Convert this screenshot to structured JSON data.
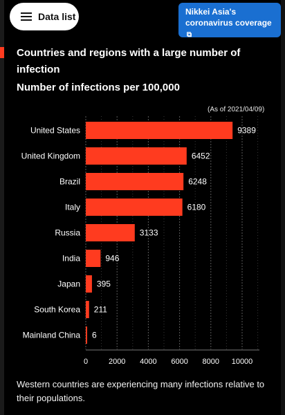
{
  "header": {
    "data_list_label": "Data list",
    "nikkei_line1": "Nikkei Asia's",
    "nikkei_line2": "coronavirus coverage",
    "nikkei_icon": "external-link-icon"
  },
  "chart_data": {
    "type": "bar",
    "orientation": "horizontal",
    "title": "Countries and regions with a large number of infection",
    "subtitle": "Number of infections per 100,000",
    "note": "(As of 2021/04/09)",
    "categories": [
      "United States",
      "United Kingdom",
      "Brazil",
      "Italy",
      "Russia",
      "India",
      "Japan",
      "South Korea",
      "Mainland China"
    ],
    "values": [
      9389,
      6452,
      6248,
      6180,
      3133,
      946,
      395,
      211,
      6
    ],
    "x_ticks": [
      0,
      2000,
      4000,
      6000,
      8000,
      10000
    ],
    "xlim": [
      0,
      11000
    ],
    "grid": true,
    "bar_color": "#ff3b1f"
  },
  "footer": {
    "text": "Western countries are experiencing many infections relative to their populations."
  }
}
